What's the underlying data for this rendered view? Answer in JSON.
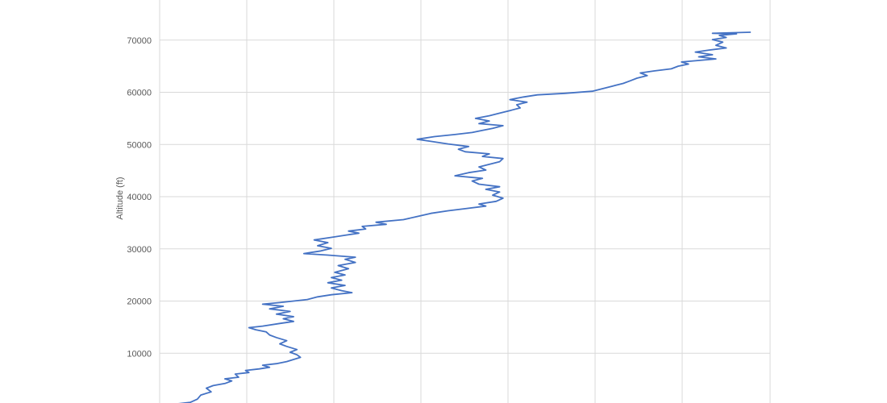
{
  "chart_data": {
    "type": "line",
    "title": "",
    "xlabel": "",
    "ylabel": "Altitude (ft)",
    "ylim": [
      0,
      77000
    ],
    "yticks": [
      10000,
      20000,
      30000,
      40000,
      50000,
      60000,
      70000
    ],
    "xlim": [
      0,
      8
    ],
    "grid": true,
    "colors": {
      "series": "#4472c4",
      "grid": "#d9d9d9",
      "text": "#595959"
    },
    "series": [
      {
        "name": "",
        "points": [
          [
            0.05,
            0
          ],
          [
            0.25,
            300
          ],
          [
            0.45,
            600
          ],
          [
            0.55,
            1200
          ],
          [
            0.6,
            2000
          ],
          [
            0.75,
            2600
          ],
          [
            0.68,
            3300
          ],
          [
            0.78,
            3800
          ],
          [
            0.95,
            4200
          ],
          [
            1.05,
            4700
          ],
          [
            0.95,
            5100
          ],
          [
            1.15,
            5400
          ],
          [
            1.1,
            6000
          ],
          [
            1.3,
            6300
          ],
          [
            1.25,
            6700
          ],
          [
            1.45,
            7000
          ],
          [
            1.6,
            7300
          ],
          [
            1.5,
            7700
          ],
          [
            1.7,
            8000
          ],
          [
            1.85,
            8400
          ],
          [
            1.95,
            8800
          ],
          [
            2.05,
            9200
          ],
          [
            2.0,
            9700
          ],
          [
            1.9,
            10200
          ],
          [
            2.0,
            10700
          ],
          [
            1.85,
            11300
          ],
          [
            1.75,
            11800
          ],
          [
            1.85,
            12400
          ],
          [
            1.7,
            13000
          ],
          [
            1.6,
            13500
          ],
          [
            1.55,
            14100
          ],
          [
            1.4,
            14500
          ],
          [
            1.3,
            14900
          ],
          [
            1.5,
            15200
          ],
          [
            1.75,
            15700
          ],
          [
            1.95,
            16100
          ],
          [
            1.8,
            16600
          ],
          [
            1.95,
            17000
          ],
          [
            1.7,
            17500
          ],
          [
            1.9,
            18000
          ],
          [
            1.6,
            18500
          ],
          [
            1.8,
            19000
          ],
          [
            1.5,
            19400
          ],
          [
            1.75,
            19700
          ],
          [
            1.95,
            20000
          ],
          [
            2.15,
            20300
          ],
          [
            2.3,
            20800
          ],
          [
            2.5,
            21200
          ],
          [
            2.8,
            21600
          ],
          [
            2.65,
            22000
          ],
          [
            2.5,
            22500
          ],
          [
            2.7,
            23000
          ],
          [
            2.45,
            23500
          ],
          [
            2.65,
            24000
          ],
          [
            2.5,
            24500
          ],
          [
            2.7,
            25000
          ],
          [
            2.55,
            25500
          ],
          [
            2.75,
            26200
          ],
          [
            2.6,
            26800
          ],
          [
            2.85,
            27400
          ],
          [
            2.7,
            28000
          ],
          [
            2.85,
            28400
          ],
          [
            2.45,
            28800
          ],
          [
            2.1,
            29100
          ],
          [
            2.35,
            29600
          ],
          [
            2.5,
            30100
          ],
          [
            2.3,
            30600
          ],
          [
            2.45,
            31200
          ],
          [
            2.25,
            31700
          ],
          [
            2.5,
            32200
          ],
          [
            2.7,
            32600
          ],
          [
            2.9,
            33000
          ],
          [
            2.75,
            33400
          ],
          [
            3.0,
            33800
          ],
          [
            2.95,
            34300
          ],
          [
            3.3,
            34700
          ],
          [
            3.15,
            35100
          ],
          [
            3.55,
            35600
          ],
          [
            3.75,
            36200
          ],
          [
            3.95,
            36800
          ],
          [
            4.2,
            37300
          ],
          [
            4.45,
            37700
          ],
          [
            4.75,
            38200
          ],
          [
            4.65,
            38600
          ],
          [
            4.9,
            39100
          ],
          [
            5.0,
            39700
          ],
          [
            4.85,
            40300
          ],
          [
            4.95,
            40900
          ],
          [
            4.75,
            41400
          ],
          [
            4.95,
            41900
          ],
          [
            4.65,
            42400
          ],
          [
            4.55,
            43000
          ],
          [
            4.7,
            43500
          ],
          [
            4.3,
            44000
          ],
          [
            4.5,
            44600
          ],
          [
            4.75,
            45100
          ],
          [
            4.65,
            45700
          ],
          [
            4.8,
            46200
          ],
          [
            4.95,
            46700
          ],
          [
            5.0,
            47300
          ],
          [
            4.7,
            47700
          ],
          [
            4.8,
            48200
          ],
          [
            4.45,
            48600
          ],
          [
            4.35,
            49100
          ],
          [
            4.5,
            49600
          ],
          [
            4.2,
            50100
          ],
          [
            3.95,
            50600
          ],
          [
            3.75,
            51000
          ],
          [
            4.0,
            51500
          ],
          [
            4.3,
            51900
          ],
          [
            4.55,
            52300
          ],
          [
            4.7,
            52700
          ],
          [
            4.85,
            53100
          ],
          [
            5.0,
            53600
          ],
          [
            4.65,
            54000
          ],
          [
            4.8,
            54500
          ],
          [
            4.6,
            55000
          ],
          [
            4.8,
            55500
          ],
          [
            4.95,
            56000
          ],
          [
            5.1,
            56500
          ],
          [
            5.25,
            57000
          ],
          [
            5.2,
            57600
          ],
          [
            5.35,
            58100
          ],
          [
            5.1,
            58600
          ],
          [
            5.3,
            59100
          ],
          [
            5.5,
            59500
          ],
          [
            5.9,
            59800
          ],
          [
            6.3,
            60200
          ],
          [
            6.45,
            60700
          ],
          [
            6.6,
            61200
          ],
          [
            6.75,
            61700
          ],
          [
            6.85,
            62200
          ],
          [
            6.95,
            62700
          ],
          [
            7.1,
            63200
          ],
          [
            7.0,
            63700
          ],
          [
            7.2,
            64100
          ],
          [
            7.45,
            64500
          ],
          [
            7.55,
            65000
          ],
          [
            7.7,
            65400
          ],
          [
            7.6,
            65800
          ],
          [
            7.85,
            66100
          ],
          [
            8.1,
            66400
          ],
          [
            7.85,
            66800
          ],
          [
            8.05,
            67200
          ],
          [
            7.8,
            67700
          ],
          [
            8.0,
            68100
          ],
          [
            8.25,
            68500
          ],
          [
            8.1,
            69000
          ],
          [
            8.2,
            69600
          ],
          [
            8.05,
            70100
          ],
          [
            8.25,
            70500
          ],
          [
            8.15,
            70900
          ],
          [
            8.4,
            71200
          ],
          [
            8.05,
            71300
          ],
          [
            8.6,
            71500
          ]
        ]
      }
    ]
  }
}
